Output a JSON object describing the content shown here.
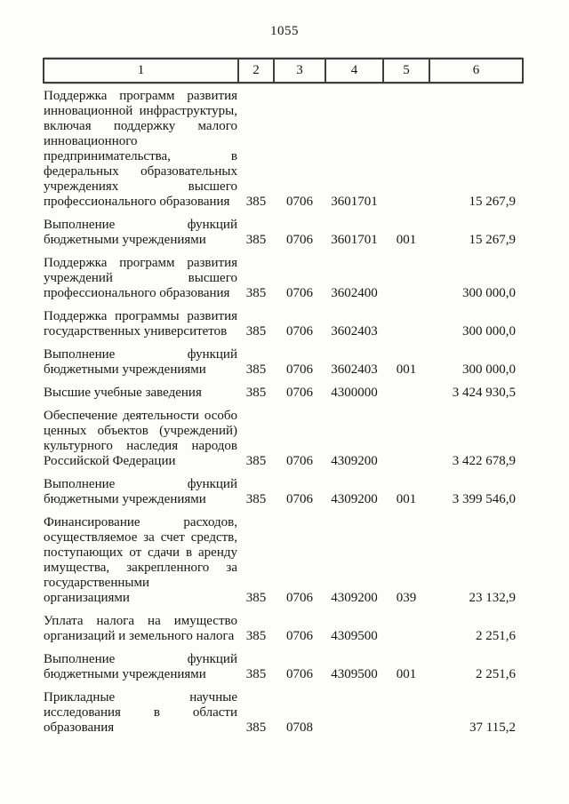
{
  "page": {
    "number": "1055"
  },
  "table": {
    "headers": [
      "1",
      "2",
      "3",
      "4",
      "5",
      "6"
    ],
    "rows": [
      {
        "name": "Поддержка программ развития инновационной инфраструктуры, включая поддержку малого инновационного предпринимательства, в федеральных образовательных учреждениях высшего профессионального образования",
        "chapter": "385",
        "section": "0706",
        "article": "3601701",
        "expense_type": "",
        "amount": "15 267,9"
      },
      {
        "name": "Выполнение функций бюджетными учреждениями",
        "chapter": "385",
        "section": "0706",
        "article": "3601701",
        "expense_type": "001",
        "amount": "15 267,9"
      },
      {
        "name": "Поддержка программ развития учреждений высшего профессионального образования",
        "chapter": "385",
        "section": "0706",
        "article": "3602400",
        "expense_type": "",
        "amount": "300 000,0"
      },
      {
        "name": "Поддержка программы развития государственных университетов",
        "chapter": "385",
        "section": "0706",
        "article": "3602403",
        "expense_type": "",
        "amount": "300 000,0"
      },
      {
        "name": "Выполнение функций бюджетными учреждениями",
        "chapter": "385",
        "section": "0706",
        "article": "3602403",
        "expense_type": "001",
        "amount": "300 000,0"
      },
      {
        "name": "Высшие учебные заведения",
        "chapter": "385",
        "section": "0706",
        "article": "4300000",
        "expense_type": "",
        "amount": "3 424 930,5"
      },
      {
        "name": "Обеспечение деятельности особо ценных объектов (учреждений) культурного наследия народов Российской Федерации",
        "chapter": "385",
        "section": "0706",
        "article": "4309200",
        "expense_type": "",
        "amount": "3 422 678,9"
      },
      {
        "name": "Выполнение функций бюджетными учреждениями",
        "chapter": "385",
        "section": "0706",
        "article": "4309200",
        "expense_type": "001",
        "amount": "3 399 546,0"
      },
      {
        "name": "Финансирование расходов, осуществляемое за счет средств, поступающих от сдачи в аренду имущества, закрепленного за государственными организациями",
        "chapter": "385",
        "section": "0706",
        "article": "4309200",
        "expense_type": "039",
        "amount": "23 132,9"
      },
      {
        "name": "Уплата налога на имущество организаций и земельного налога",
        "chapter": "385",
        "section": "0706",
        "article": "4309500",
        "expense_type": "",
        "amount": "2 251,6"
      },
      {
        "name": "Выполнение функций бюджетными учреждениями",
        "chapter": "385",
        "section": "0706",
        "article": "4309500",
        "expense_type": "001",
        "amount": "2 251,6"
      },
      {
        "name": "Прикладные научные исследования в области образования",
        "chapter": "385",
        "section": "0708",
        "article": "",
        "expense_type": "",
        "amount": "37 115,2"
      }
    ]
  }
}
